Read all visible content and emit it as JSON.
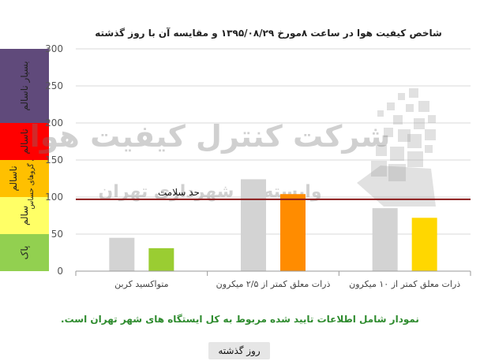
{
  "chart_data": {
    "type": "bar",
    "title": "شاخص کیفیت هوا در ساعت ۸مورخ ۱۳۹۵/۰۸/۲۹ و مقایسه آن با روز گذشته",
    "categories": [
      "متواکسید کربن",
      "ذرات معلق کمتر از ۲/۵ میکرون",
      "ذرات معلق کمتر از ۱۰ میکرون"
    ],
    "series": [
      {
        "values": [
          45,
          124,
          85
        ],
        "color": "#d3d3d3"
      },
      {
        "values": [
          31,
          104,
          72
        ],
        "colors": [
          "#9acd32",
          "#ff8c00",
          "#ffd700"
        ]
      }
    ],
    "ylim": [
      0,
      300
    ],
    "yticks": [
      "0",
      "50",
      "100",
      "150",
      "200",
      "250",
      "300"
    ],
    "grid": true,
    "reference_line": {
      "value": 97,
      "label": "حد سلامت",
      "color": "#8b1a1a"
    },
    "aqi_bands": [
      {
        "label": "پاک",
        "from": 0,
        "to": 50,
        "color": "#92d050"
      },
      {
        "label": "سالم",
        "from": 50,
        "to": 100,
        "color": "#ffff66"
      },
      {
        "label": "ناسالم",
        "sub_label": "برای گروهای حساس",
        "from": 100,
        "to": 150,
        "color": "#ffc000"
      },
      {
        "label": "ناسالم",
        "from": 150,
        "to": 200,
        "color": "#ff0000"
      },
      {
        "label": "بسیار ناسالم",
        "from": 200,
        "to": 300,
        "color": "#604a7b"
      }
    ],
    "watermark": {
      "line1": "شرکت کنترل کیفیت هوا",
      "line2": "وابسته به شهرداری تهران"
    }
  },
  "footnote": "نمودار شامل اطلاعات تایید شده مربوط به کل ایستگاه های شهر تهران است.",
  "prev_day_button": "روز گذشته"
}
